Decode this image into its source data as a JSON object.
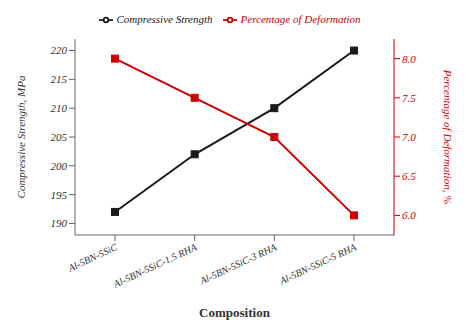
{
  "chart_data": {
    "type": "line",
    "xlabel": "Composition",
    "ylabel": "Compressive Strength, MPa",
    "y2label": "Percentage of Deformation, %",
    "categories": [
      "Al-5BN-5SiC",
      "Al-5BN-5SiC-1.5 RHA",
      "Al-5BN-5SiC-3 RHA",
      "Al-5BN-5SiC-5 RHA"
    ],
    "series": [
      {
        "name": "Compressive Strength",
        "color": "#1a1a1a",
        "marker": "square",
        "values": [
          192,
          202,
          210,
          220
        ]
      },
      {
        "name": "Percentage of Deformation",
        "color": "#cc0000",
        "marker": "square",
        "axis": "y2",
        "values": [
          8.0,
          7.5,
          7.0,
          6.0
        ]
      }
    ],
    "ylim": [
      188,
      222
    ],
    "yticks": [
      190,
      195,
      200,
      205,
      210,
      215,
      220
    ],
    "y2lim": [
      5.75,
      8.25
    ],
    "y2ticks": [
      {
        "value": 6,
        "label": "6.0"
      },
      6.5,
      {
        "value": 7,
        "label": "7.0"
      },
      7.5,
      {
        "value": 8,
        "label": "8.0"
      }
    ],
    "legend": "top",
    "grid": false
  }
}
